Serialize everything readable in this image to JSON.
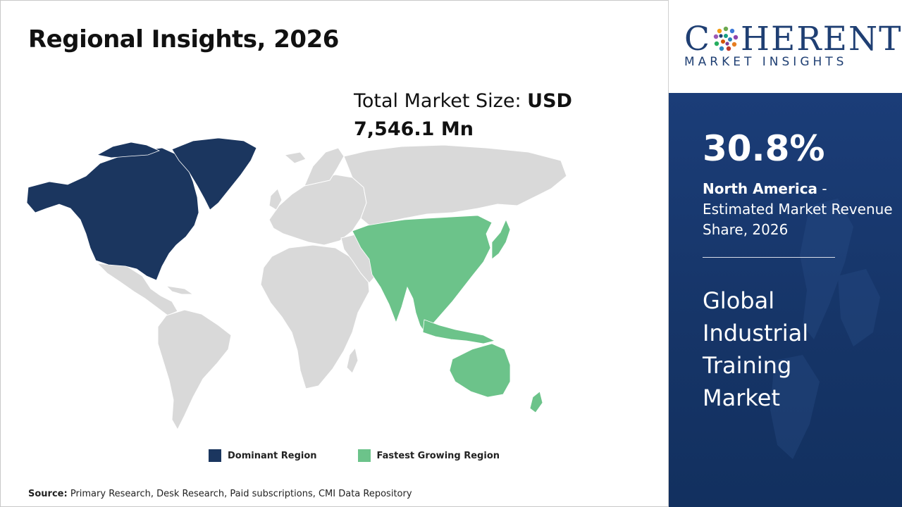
{
  "title": "Regional Insights, 2026",
  "market_size": {
    "label": "Total Market Size:",
    "value_line1": "USD",
    "value_line2": "7,546.1 Mn"
  },
  "legend": [
    {
      "label": "Dominant Region",
      "color": "#1b365f"
    },
    {
      "label": "Fastest Growing Region",
      "color": "#6cc38a"
    }
  ],
  "map": {
    "base_color": "#d9d9d9",
    "dominant_region": "North America",
    "fastest_growing_region": "Asia Pacific"
  },
  "source": {
    "label": "Source:",
    "text": "Primary Research, Desk Research, Paid subscriptions, CMI Data Repository"
  },
  "logo": {
    "word_start": "C",
    "word_end": "HERENT",
    "subtitle": "MARKET INSIGHTS",
    "color": "#1f3f73"
  },
  "highlight": {
    "percentage": "30.8%",
    "region": "North America",
    "description": " - Estimated Market Revenue Share, 2026"
  },
  "market_name": [
    "Global",
    "Industrial",
    "Training",
    "Market"
  ],
  "panel_color": "#163568"
}
